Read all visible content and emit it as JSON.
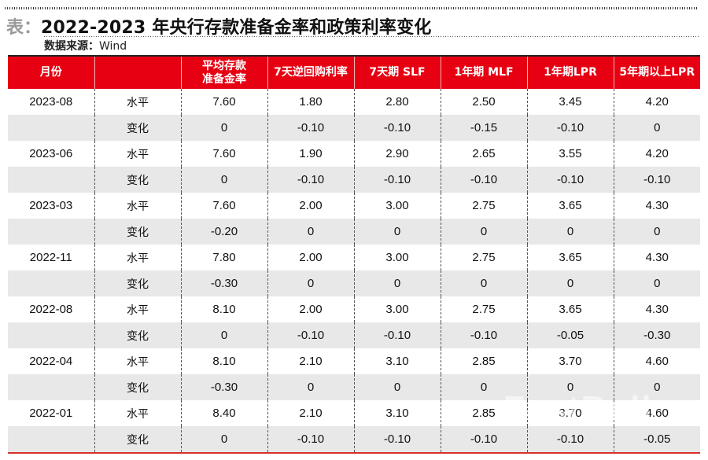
{
  "title": {
    "prefix": "表：",
    "text": "2022-2023 年央行存款准备金率和政策利率变化"
  },
  "source": {
    "label": "数据来源：",
    "value": "Wind"
  },
  "table": {
    "headers": [
      "月份",
      "",
      "平均存款准备金率",
      "7天逆回购利率",
      "7天期 SLF",
      "1年期 MLF",
      "1年期LPR",
      "5年期以上LPR"
    ],
    "header_lines": {
      "rrr_line1": "平均存款",
      "rrr_line2": "准备金率"
    },
    "rows": [
      {
        "month": "2023-08",
        "kind": "水平",
        "values": [
          "7.60",
          "1.80",
          "2.80",
          "2.50",
          "3.45",
          "4.20"
        ]
      },
      {
        "month": "",
        "kind": "变化",
        "values": [
          "0",
          "-0.10",
          "-0.10",
          "-0.15",
          "-0.10",
          "0"
        ]
      },
      {
        "month": "2023-06",
        "kind": "水平",
        "values": [
          "7.60",
          "1.90",
          "2.90",
          "2.65",
          "3.55",
          "4.20"
        ]
      },
      {
        "month": "",
        "kind": "变化",
        "values": [
          "0",
          "-0.10",
          "-0.10",
          "-0.10",
          "-0.10",
          "-0.10"
        ]
      },
      {
        "month": "2023-03",
        "kind": "水平",
        "values": [
          "7.60",
          "2.00",
          "3.00",
          "2.75",
          "3.65",
          "4.30"
        ]
      },
      {
        "month": "",
        "kind": "变化",
        "values": [
          "-0.20",
          "0",
          "0",
          "0",
          "0",
          "0"
        ]
      },
      {
        "month": "2022-11",
        "kind": "水平",
        "values": [
          "7.80",
          "2.00",
          "3.00",
          "2.75",
          "3.65",
          "4.30"
        ]
      },
      {
        "month": "",
        "kind": "变化",
        "values": [
          "-0.30",
          "0",
          "0",
          "0",
          "0",
          "0"
        ]
      },
      {
        "month": "2022-08",
        "kind": "水平",
        "values": [
          "8.10",
          "2.00",
          "3.00",
          "2.75",
          "3.65",
          "4.30"
        ]
      },
      {
        "month": "",
        "kind": "变化",
        "values": [
          "0",
          "-0.10",
          "-0.10",
          "-0.10",
          "-0.05",
          "-0.30"
        ]
      },
      {
        "month": "2022-04",
        "kind": "水平",
        "values": [
          "8.10",
          "2.10",
          "3.10",
          "2.85",
          "3.70",
          "4.60"
        ]
      },
      {
        "month": "",
        "kind": "变化",
        "values": [
          "-0.30",
          "0",
          "0",
          "0",
          "0",
          "0"
        ]
      },
      {
        "month": "2022-01",
        "kind": "水平",
        "values": [
          "8.40",
          "2.10",
          "3.10",
          "2.85",
          "3.70",
          "4.60"
        ]
      },
      {
        "month": "",
        "kind": "变化",
        "values": [
          "0",
          "-0.10",
          "-0.10",
          "-0.10",
          "-0.10",
          "-0.05"
        ]
      }
    ]
  },
  "watermark": "FastBull",
  "colors": {
    "header_bg": "#e60012",
    "change_row_bg": "#e8e8e8",
    "bottom_rule": "#d9302b",
    "title_prefix": "#9a9a9a"
  }
}
